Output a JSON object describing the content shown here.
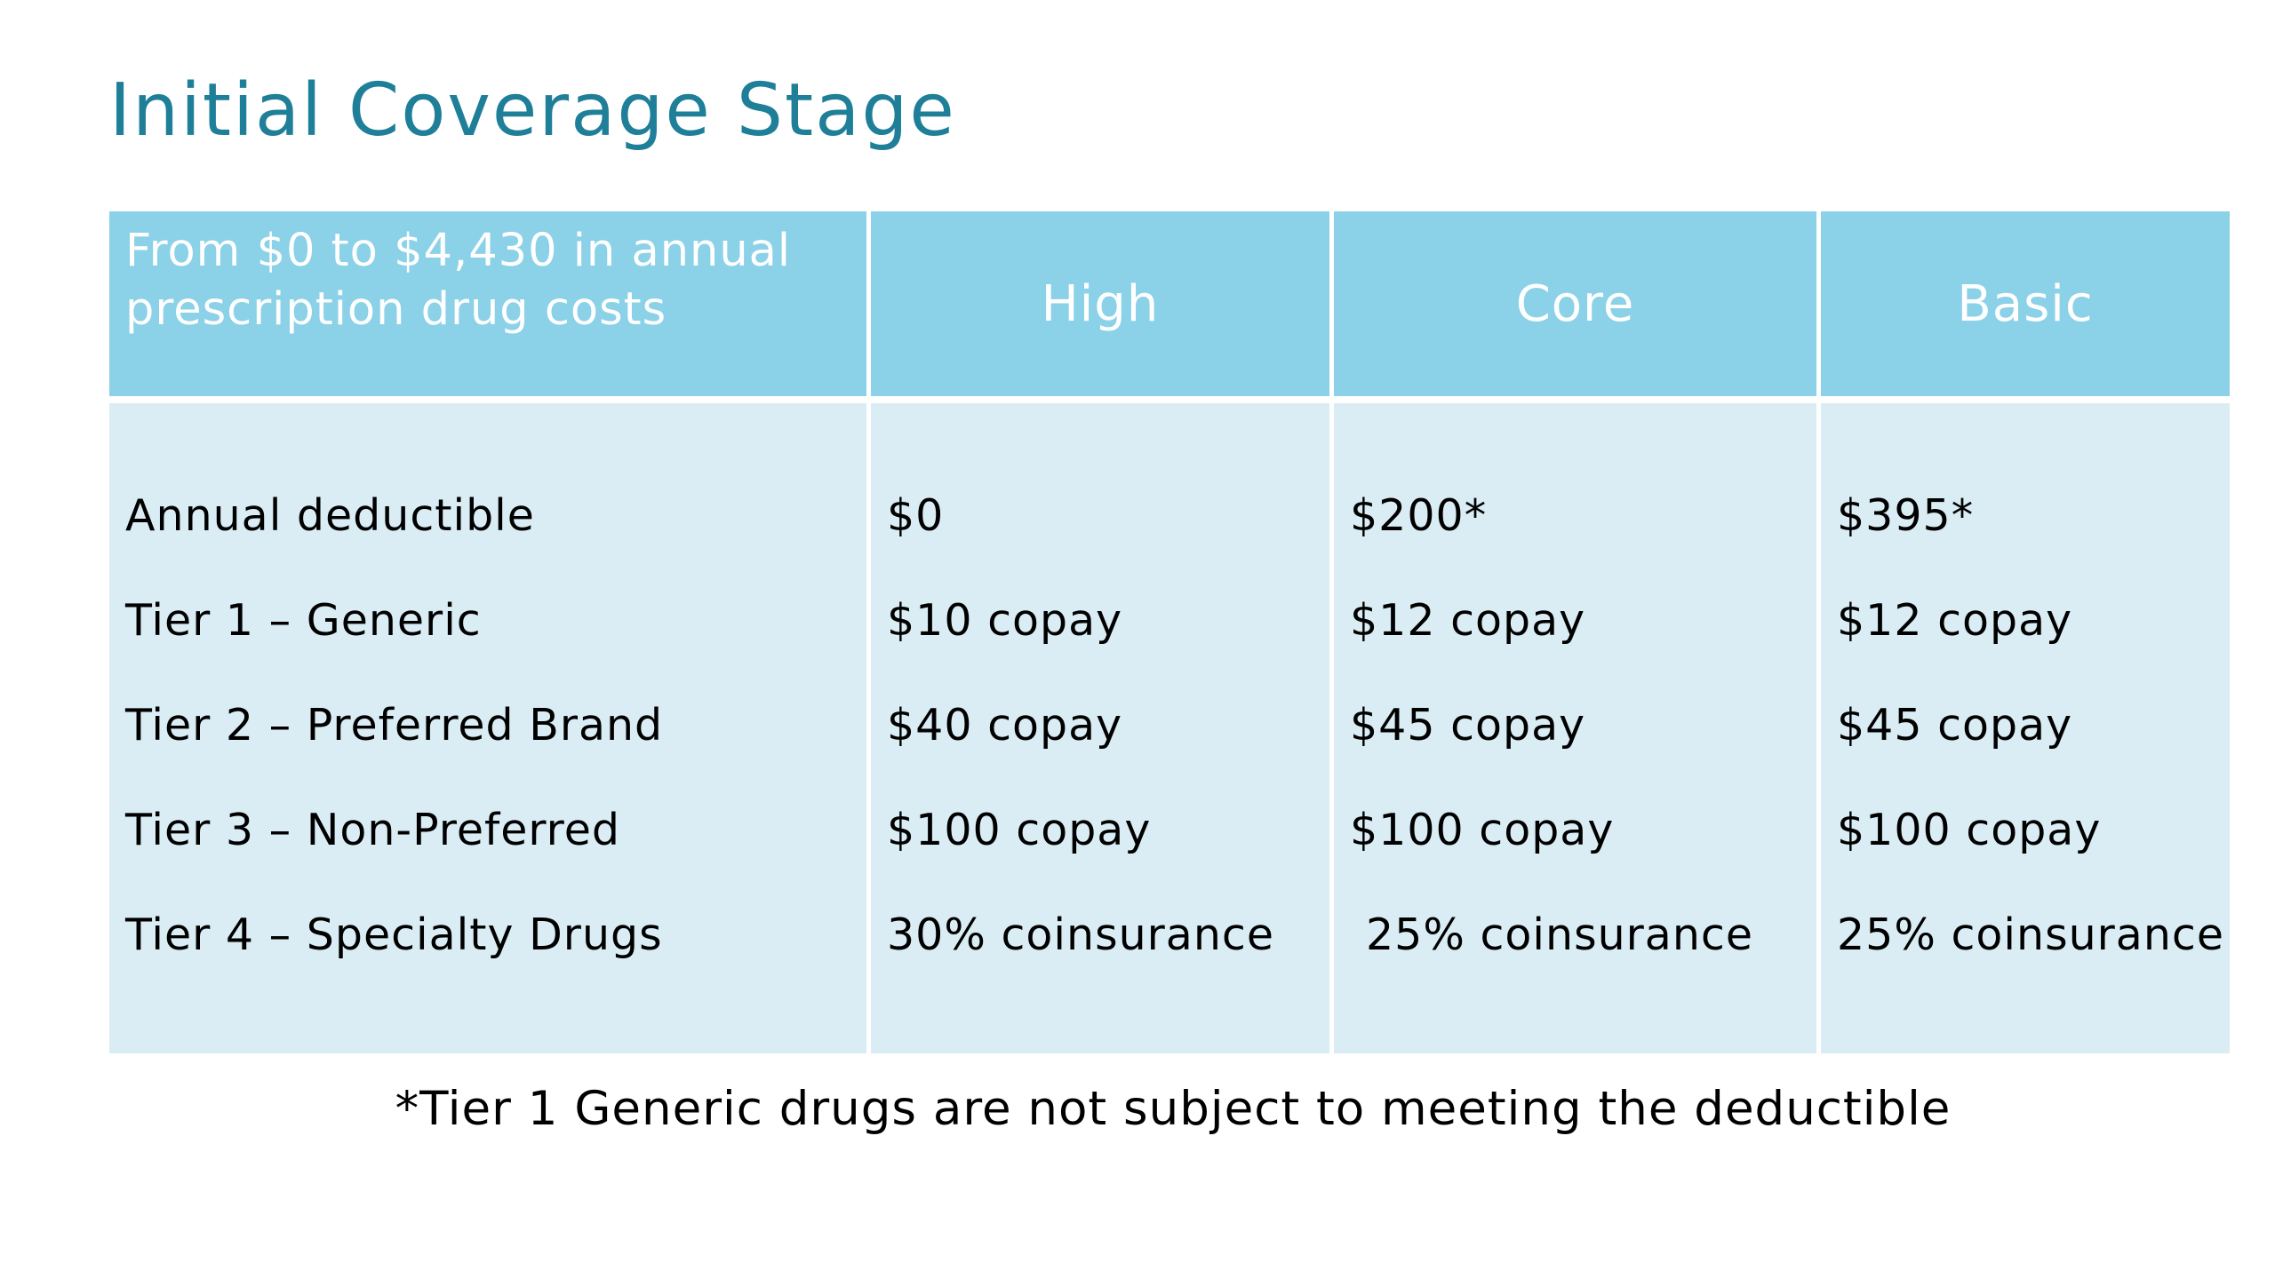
{
  "title": "Initial Coverage Stage",
  "table": {
    "header": {
      "label_line1": "From $0 to $4,430 in annual",
      "label_line2": "prescription drug costs",
      "plans": [
        "High",
        "Core",
        "Basic"
      ]
    },
    "row_labels": [
      "Annual deductible",
      "Tier 1 – Generic",
      "Tier 2 – Preferred Brand",
      "Tier 3 – Non-Preferred",
      "Tier 4 – Specialty Drugs"
    ],
    "plans": [
      {
        "name": "High",
        "values": [
          "$0",
          "$10 copay",
          "$40 copay",
          "$100 copay",
          "30% coinsurance"
        ]
      },
      {
        "name": "Core",
        "values": [
          "$200*",
          "$12 copay",
          "$45 copay",
          "$100 copay",
          "25% coinsurance"
        ]
      },
      {
        "name": "Basic",
        "values": [
          "$395*",
          "$12 copay",
          "$45 copay",
          "$100 copay",
          "25% coinsurance"
        ]
      }
    ],
    "colors": {
      "header_bg": "#8bd1e8",
      "body_bg": "#daedf5",
      "title": "#1f7f99"
    }
  },
  "footnote": "*Tier 1 Generic drugs are not subject to meeting the deductible"
}
